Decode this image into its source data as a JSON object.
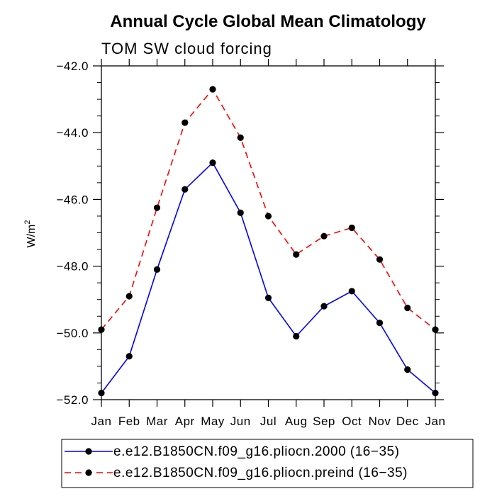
{
  "chart_data": {
    "type": "line",
    "title": "Annual Cycle Global Mean Climatology",
    "subtitle": "TOM SW cloud forcing",
    "xlabel": "",
    "ylabel": "W/m",
    "ylabel_superscript": "2",
    "categories": [
      "Jan",
      "Feb",
      "Mar",
      "Apr",
      "May",
      "Jun",
      "Jul",
      "Aug",
      "Sep",
      "Oct",
      "Nov",
      "Dec",
      "Jan"
    ],
    "ylim": [
      -52.0,
      -42.0
    ],
    "yticks": [
      -52.0,
      -50.0,
      -48.0,
      -46.0,
      -44.0,
      -42.0
    ],
    "ytick_labels": [
      "−52.0",
      "−50.0",
      "−48.0",
      "−46.0",
      "−44.0",
      "−42.0"
    ],
    "series": [
      {
        "name": "e.e12.B1850CN.f09_g16.pliocn.2000 (16−35)",
        "color": "#0000ff",
        "dash": "solid",
        "marker": "circle",
        "values": [
          -51.8,
          -50.7,
          -48.1,
          -45.7,
          -44.9,
          -46.4,
          -48.95,
          -50.1,
          -49.2,
          -48.75,
          -49.7,
          -51.1,
          -51.8
        ]
      },
      {
        "name": "e.e12.B1850CN.f09_g16.pliocn.preind (16−35)",
        "color": "#ff0000",
        "dash": "dashed",
        "marker": "circle",
        "values": [
          -49.9,
          -48.9,
          -46.25,
          -43.7,
          -42.7,
          -44.15,
          -46.5,
          -47.65,
          -47.1,
          -46.85,
          -47.8,
          -49.25,
          -49.9
        ]
      }
    ],
    "legend_position": "bottom"
  }
}
